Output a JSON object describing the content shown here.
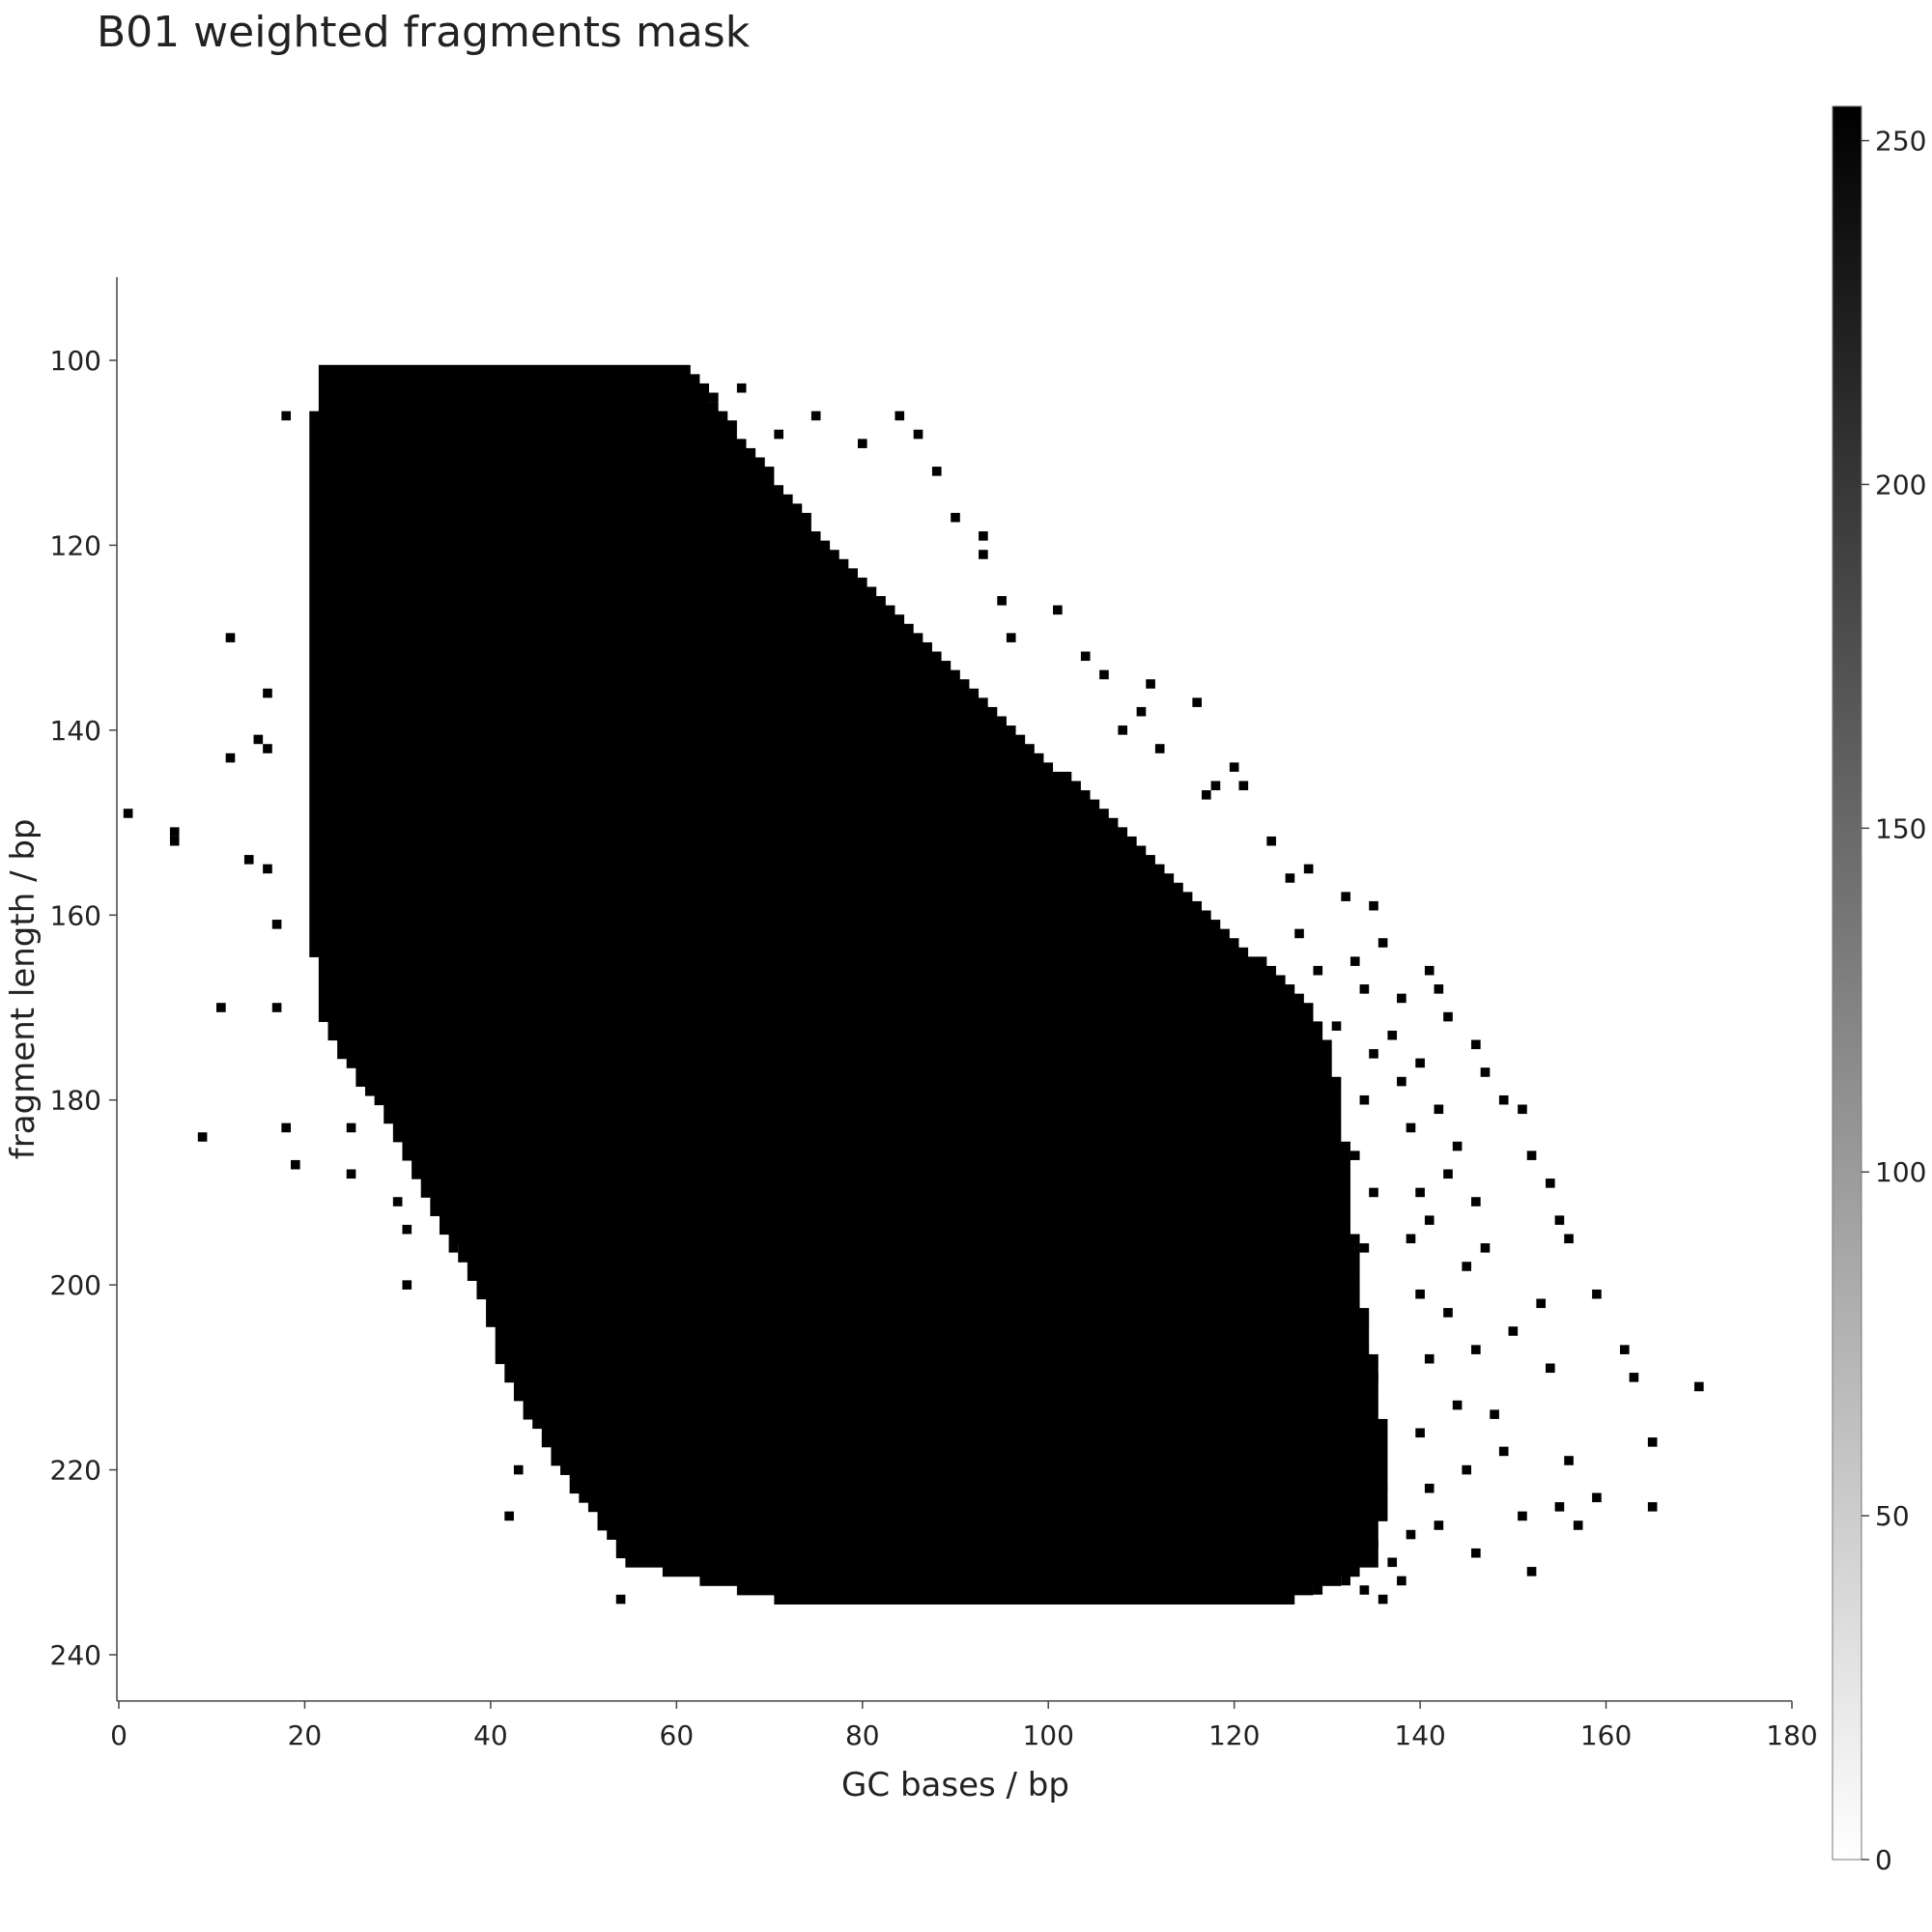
{
  "title": "B01 weighted fragments mask",
  "chart_data": {
    "type": "heatmap",
    "title": "B01 weighted fragments mask",
    "xlabel": "GC bases / bp",
    "ylabel": "fragment length / bp",
    "xlim": [
      0,
      180
    ],
    "ylim": [
      245,
      91
    ],
    "x_ticks": [
      0,
      20,
      40,
      60,
      80,
      100,
      120,
      140,
      160,
      180
    ],
    "y_ticks": [
      100,
      120,
      140,
      160,
      180,
      200,
      220,
      240
    ],
    "colorbar": {
      "ticks": [
        0,
        50,
        100,
        150,
        200,
        250
      ],
      "range": [
        0,
        255
      ],
      "low_color": "#ffffff",
      "high_color": "#000000"
    },
    "cell_size_bp": 1,
    "mask_value": 255,
    "mask_region": {
      "description_rows": "fragment length 101 to 234; for each length the masked GC range (bp)",
      "rows": [
        {
          "length": 101,
          "gc_min": 22,
          "gc_max": 61
        },
        {
          "length": 110,
          "gc_min": 21,
          "gc_max": 68
        },
        {
          "length": 120,
          "gc_min": 21,
          "gc_max": 76
        },
        {
          "length": 130,
          "gc_min": 21,
          "gc_max": 86
        },
        {
          "length": 140,
          "gc_min": 21,
          "gc_max": 96
        },
        {
          "length": 150,
          "gc_min": 21,
          "gc_max": 107
        },
        {
          "length": 160,
          "gc_min": 21,
          "gc_max": 117
        },
        {
          "length": 170,
          "gc_min": 22,
          "gc_max": 128
        },
        {
          "length": 175,
          "gc_min": 24,
          "gc_max": 130
        },
        {
          "length": 180,
          "gc_min": 28,
          "gc_max": 131
        },
        {
          "length": 190,
          "gc_min": 33,
          "gc_max": 132
        },
        {
          "length": 200,
          "gc_min": 39,
          "gc_max": 133
        },
        {
          "length": 210,
          "gc_min": 42,
          "gc_max": 135
        },
        {
          "length": 220,
          "gc_min": 48,
          "gc_max": 136
        },
        {
          "length": 230,
          "gc_min": 55,
          "gc_max": 135
        },
        {
          "length": 234,
          "gc_min": 71,
          "gc_max": 126
        }
      ]
    },
    "scattered_points": [
      {
        "x": 1,
        "y": 149
      },
      {
        "x": 6,
        "y": 151
      },
      {
        "x": 6,
        "y": 152
      },
      {
        "x": 9,
        "y": 184
      },
      {
        "x": 11,
        "y": 170
      },
      {
        "x": 12,
        "y": 130
      },
      {
        "x": 12,
        "y": 143
      },
      {
        "x": 14,
        "y": 154
      },
      {
        "x": 15,
        "y": 141
      },
      {
        "x": 16,
        "y": 136
      },
      {
        "x": 16,
        "y": 142
      },
      {
        "x": 16,
        "y": 155
      },
      {
        "x": 17,
        "y": 161
      },
      {
        "x": 17,
        "y": 170
      },
      {
        "x": 18,
        "y": 183
      },
      {
        "x": 18,
        "y": 106
      },
      {
        "x": 19,
        "y": 187
      },
      {
        "x": 25,
        "y": 127
      },
      {
        "x": 25,
        "y": 152
      },
      {
        "x": 25,
        "y": 183
      },
      {
        "x": 25,
        "y": 188
      },
      {
        "x": 30,
        "y": 191
      },
      {
        "x": 31,
        "y": 185
      },
      {
        "x": 31,
        "y": 194
      },
      {
        "x": 31,
        "y": 200
      },
      {
        "x": 36,
        "y": 196
      },
      {
        "x": 42,
        "y": 225
      },
      {
        "x": 43,
        "y": 220
      },
      {
        "x": 45,
        "y": 211
      },
      {
        "x": 54,
        "y": 222
      },
      {
        "x": 54,
        "y": 234
      },
      {
        "x": 64,
        "y": 104
      },
      {
        "x": 67,
        "y": 103
      },
      {
        "x": 71,
        "y": 108
      },
      {
        "x": 75,
        "y": 106
      },
      {
        "x": 80,
        "y": 109
      },
      {
        "x": 84,
        "y": 106
      },
      {
        "x": 86,
        "y": 108
      },
      {
        "x": 88,
        "y": 112
      },
      {
        "x": 90,
        "y": 117
      },
      {
        "x": 93,
        "y": 119
      },
      {
        "x": 93,
        "y": 121
      },
      {
        "x": 95,
        "y": 126
      },
      {
        "x": 96,
        "y": 130
      },
      {
        "x": 101,
        "y": 127
      },
      {
        "x": 104,
        "y": 132
      },
      {
        "x": 106,
        "y": 134
      },
      {
        "x": 108,
        "y": 140
      },
      {
        "x": 110,
        "y": 138
      },
      {
        "x": 111,
        "y": 135
      },
      {
        "x": 112,
        "y": 142
      },
      {
        "x": 116,
        "y": 137
      },
      {
        "x": 117,
        "y": 147
      },
      {
        "x": 118,
        "y": 146
      },
      {
        "x": 120,
        "y": 144
      },
      {
        "x": 121,
        "y": 146
      },
      {
        "x": 124,
        "y": 152
      },
      {
        "x": 126,
        "y": 156
      },
      {
        "x": 128,
        "y": 155
      },
      {
        "x": 132,
        "y": 158
      },
      {
        "x": 135,
        "y": 159
      },
      {
        "x": 136,
        "y": 163
      },
      {
        "x": 141,
        "y": 166
      },
      {
        "x": 142,
        "y": 168
      },
      {
        "x": 143,
        "y": 171
      },
      {
        "x": 146,
        "y": 174
      },
      {
        "x": 147,
        "y": 177
      },
      {
        "x": 149,
        "y": 180
      },
      {
        "x": 151,
        "y": 181
      },
      {
        "x": 152,
        "y": 186
      },
      {
        "x": 154,
        "y": 189
      },
      {
        "x": 155,
        "y": 193
      },
      {
        "x": 156,
        "y": 195
      },
      {
        "x": 159,
        "y": 201
      },
      {
        "x": 162,
        "y": 207
      },
      {
        "x": 163,
        "y": 210
      },
      {
        "x": 165,
        "y": 217
      },
      {
        "x": 165,
        "y": 224
      },
      {
        "x": 170,
        "y": 211
      },
      {
        "x": 156,
        "y": 219
      },
      {
        "x": 157,
        "y": 226
      },
      {
        "x": 155,
        "y": 224
      },
      {
        "x": 154,
        "y": 209
      },
      {
        "x": 159,
        "y": 223
      },
      {
        "x": 151,
        "y": 225
      },
      {
        "x": 152,
        "y": 231
      },
      {
        "x": 149,
        "y": 218
      },
      {
        "x": 148,
        "y": 214
      },
      {
        "x": 150,
        "y": 205
      },
      {
        "x": 153,
        "y": 202
      },
      {
        "x": 147,
        "y": 196
      },
      {
        "x": 146,
        "y": 191
      },
      {
        "x": 144,
        "y": 185
      },
      {
        "x": 143,
        "y": 188
      },
      {
        "x": 145,
        "y": 198
      },
      {
        "x": 146,
        "y": 207
      },
      {
        "x": 144,
        "y": 213
      },
      {
        "x": 145,
        "y": 220
      },
      {
        "x": 146,
        "y": 229
      },
      {
        "x": 142,
        "y": 226
      },
      {
        "x": 141,
        "y": 222
      },
      {
        "x": 140,
        "y": 216
      },
      {
        "x": 141,
        "y": 208
      },
      {
        "x": 140,
        "y": 201
      },
      {
        "x": 139,
        "y": 195
      },
      {
        "x": 140,
        "y": 190
      },
      {
        "x": 139,
        "y": 183
      },
      {
        "x": 138,
        "y": 178
      },
      {
        "x": 137,
        "y": 173
      },
      {
        "x": 138,
        "y": 169
      },
      {
        "x": 140,
        "y": 176
      },
      {
        "x": 142,
        "y": 181
      },
      {
        "x": 141,
        "y": 193
      },
      {
        "x": 143,
        "y": 203
      },
      {
        "x": 137,
        "y": 230
      },
      {
        "x": 138,
        "y": 232
      },
      {
        "x": 139,
        "y": 227
      },
      {
        "x": 134,
        "y": 233
      },
      {
        "x": 136,
        "y": 234
      },
      {
        "x": 132,
        "y": 232
      },
      {
        "x": 130,
        "y": 231
      },
      {
        "x": 129,
        "y": 233
      },
      {
        "x": 128,
        "y": 192
      },
      {
        "x": 129,
        "y": 185
      },
      {
        "x": 130,
        "y": 178
      },
      {
        "x": 131,
        "y": 172
      },
      {
        "x": 129,
        "y": 166
      },
      {
        "x": 127,
        "y": 162
      },
      {
        "x": 133,
        "y": 165
      },
      {
        "x": 134,
        "y": 168
      },
      {
        "x": 135,
        "y": 175
      },
      {
        "x": 134,
        "y": 180
      },
      {
        "x": 133,
        "y": 186
      },
      {
        "x": 135,
        "y": 190
      },
      {
        "x": 134,
        "y": 196
      },
      {
        "x": 133,
        "y": 203
      },
      {
        "x": 135,
        "y": 210
      },
      {
        "x": 134,
        "y": 216
      },
      {
        "x": 136,
        "y": 222
      },
      {
        "x": 135,
        "y": 228
      }
    ]
  }
}
